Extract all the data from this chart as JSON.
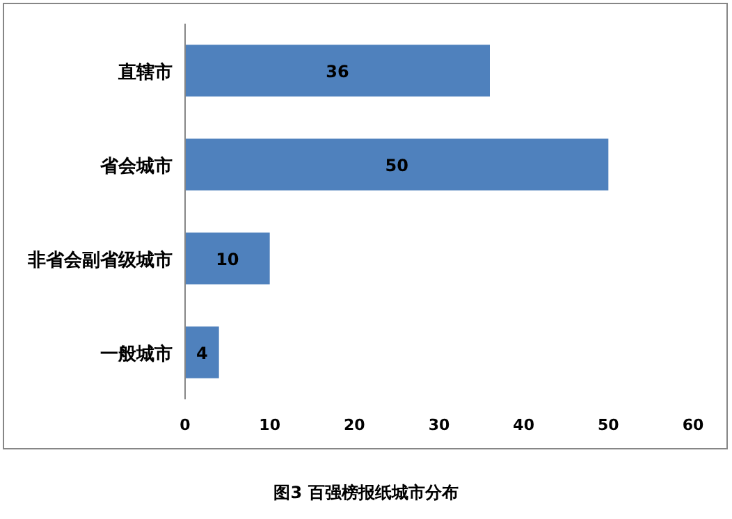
{
  "chart_data": {
    "type": "bar",
    "orientation": "horizontal",
    "title": "图3  百强榜报纸城市分布",
    "categories": [
      "直辖市",
      "省会城市",
      "非省会副省级城市",
      "一般城市"
    ],
    "values": [
      36,
      50,
      10,
      4
    ],
    "color": "#4f81bd",
    "xlim": [
      0,
      60
    ],
    "xticks": [
      0,
      10,
      20,
      30,
      40,
      50,
      60
    ],
    "data_labels": true
  }
}
